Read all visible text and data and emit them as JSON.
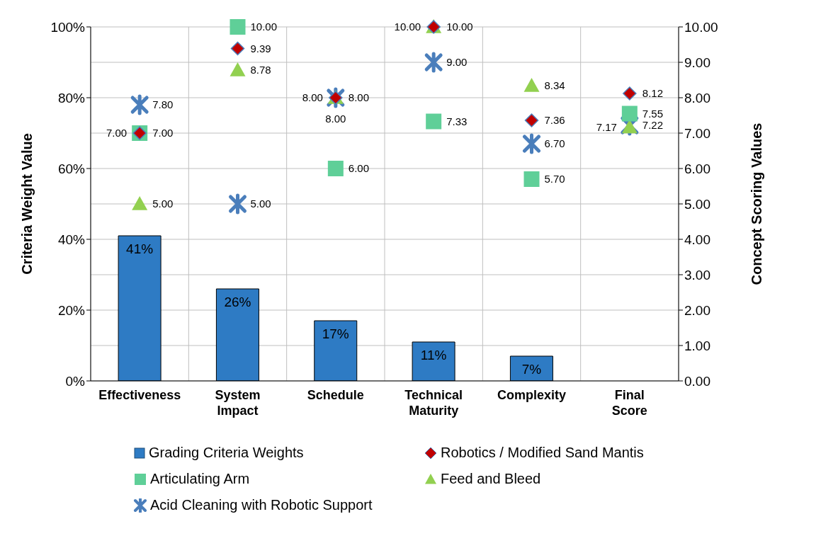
{
  "chart_data": {
    "type": "bar",
    "xlabel": null,
    "ylabel": "Criteria Weight Value",
    "y2label": "Concept Scoring Values",
    "categories": [
      "Effectiveness",
      "System Impact",
      "Schedule",
      "Technical Maturity",
      "Complexity",
      "Final Score"
    ],
    "series": [
      {
        "name": "Grading Criteria Weights",
        "color": "#2e7bc4",
        "values": [
          41,
          26,
          17,
          11,
          7,
          null
        ],
        "value_labels": [
          "41%",
          "26%",
          "17%",
          "11%",
          "7%",
          null
        ]
      },
      {
        "name": "Robotics / Modified Sand Mantis",
        "type": "scatter",
        "axis": "y2",
        "marker": "diamond",
        "color": "#c00000",
        "values": [
          7.0,
          9.39,
          8.0,
          10.0,
          7.36,
          8.12
        ],
        "value_labels": [
          "7.00",
          "9.39",
          "8.00",
          "10.00",
          "7.36",
          "8.12"
        ]
      },
      {
        "name": "Articulating Arm",
        "type": "scatter",
        "axis": "y2",
        "marker": "square",
        "color": "#5fcf98",
        "values": [
          7.0,
          10.0,
          6.0,
          7.33,
          5.7,
          7.55
        ],
        "value_labels": [
          "7.00",
          "10.00",
          "6.00",
          "7.33",
          "5.70",
          "7.55"
        ]
      },
      {
        "name": "Feed and Bleed",
        "type": "scatter",
        "axis": "y2",
        "marker": "triangle",
        "color": "#92d050",
        "values": [
          5.0,
          8.78,
          8.0,
          10.0,
          8.34,
          7.17
        ],
        "value_labels": [
          "5.00",
          "8.78",
          "8.00",
          "10.00",
          "8.34",
          "7.17"
        ]
      },
      {
        "name": "Acid Cleaning with Robotic Support",
        "type": "scatter",
        "axis": "y2",
        "marker": "cross",
        "color": "#4a7ebb",
        "values": [
          7.8,
          5.0,
          8.0,
          9.0,
          6.7,
          7.22
        ],
        "value_labels": [
          "7.80",
          "5.00",
          "8.00",
          "9.00",
          "6.70",
          "7.22"
        ]
      }
    ],
    "ylim": [
      0,
      100
    ],
    "yticks": [
      {
        "value": 0,
        "label": "0%"
      },
      {
        "value": 20,
        "label": "20%"
      },
      {
        "value": 40,
        "label": "40%"
      },
      {
        "value": 60,
        "label": "60%"
      },
      {
        "value": 80,
        "label": "80%"
      },
      {
        "value": 100,
        "label": "100%"
      }
    ],
    "y2lim": [
      0,
      10
    ],
    "y2ticks": [
      {
        "value": 0,
        "label": "0.00"
      },
      {
        "value": 1,
        "label": "1.00"
      },
      {
        "value": 2,
        "label": "2.00"
      },
      {
        "value": 3,
        "label": "3.00"
      },
      {
        "value": 4,
        "label": "4.00"
      },
      {
        "value": 5,
        "label": "5.00"
      },
      {
        "value": 6,
        "label": "6.00"
      },
      {
        "value": 7,
        "label": "7.00"
      },
      {
        "value": 8,
        "label": "8.00"
      },
      {
        "value": 9,
        "label": "9.00"
      },
      {
        "value": 10,
        "label": "10.00"
      }
    ],
    "grid": true,
    "legend": "bottom"
  }
}
